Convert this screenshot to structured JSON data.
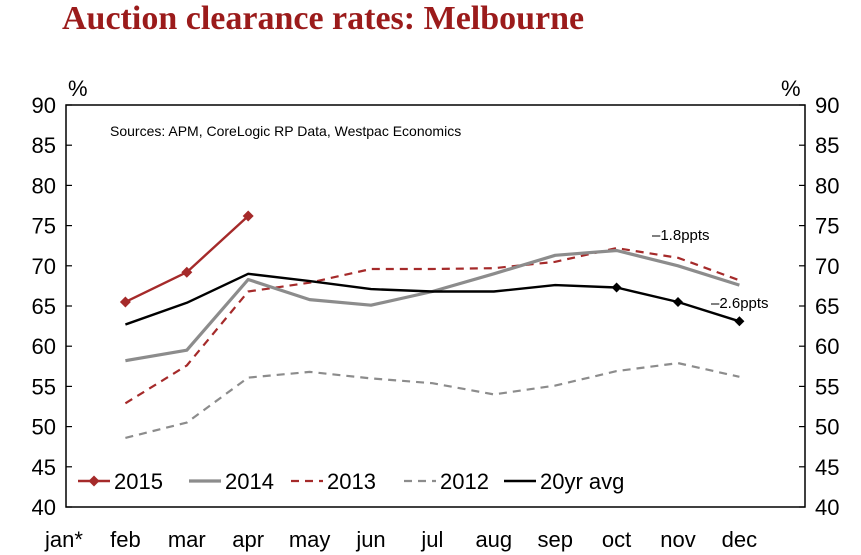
{
  "title": "Auction clearance rates: Melbourne",
  "chart_data": {
    "type": "line",
    "title": "Auction clearance rates: Melbourne",
    "left_unit": "%",
    "right_unit": "%",
    "source": "Sources: APM, CoreLogic RP Data, Westpac Economics",
    "categories": [
      "jan*",
      "feb",
      "mar",
      "apr",
      "may",
      "jun",
      "jul",
      "aug",
      "sep",
      "oct",
      "nov",
      "dec"
    ],
    "ylim": [
      40,
      90
    ],
    "yticks": [
      40,
      45,
      50,
      55,
      60,
      65,
      70,
      75,
      80,
      85,
      90
    ],
    "series": [
      {
        "name": "2015",
        "color": "#a52a2a",
        "style": "solid-diamond",
        "values": [
          null,
          65.5,
          69.2,
          76.2,
          null,
          null,
          null,
          null,
          null,
          null,
          null,
          null
        ]
      },
      {
        "name": "2014",
        "color": "#8c8c8c",
        "style": "solid-thick",
        "values": [
          null,
          58.2,
          59.5,
          68.3,
          65.8,
          65.1,
          66.8,
          69.0,
          71.3,
          71.9,
          70.0,
          67.6
        ]
      },
      {
        "name": "2013",
        "color": "#a52a2a",
        "style": "dashed",
        "values": [
          null,
          52.9,
          57.6,
          66.8,
          67.9,
          69.6,
          69.6,
          69.7,
          70.5,
          72.2,
          71.0,
          68.2
        ]
      },
      {
        "name": "2012",
        "color": "#8c8c8c",
        "style": "dashed",
        "values": [
          null,
          48.6,
          50.5,
          56.1,
          56.8,
          56.0,
          55.4,
          54.0,
          55.1,
          56.9,
          57.9,
          56.2
        ]
      },
      {
        "name": "20yr avg",
        "color": "#000000",
        "style": "solid-marker-tail",
        "values": [
          null,
          62.7,
          65.4,
          69.0,
          68.1,
          67.1,
          66.8,
          66.8,
          67.6,
          67.3,
          65.5,
          63.1
        ]
      }
    ],
    "annotations": [
      {
        "text": "–1.8ppts"
      },
      {
        "text": "–2.6ppts"
      }
    ],
    "legend_position": "bottom-left"
  }
}
